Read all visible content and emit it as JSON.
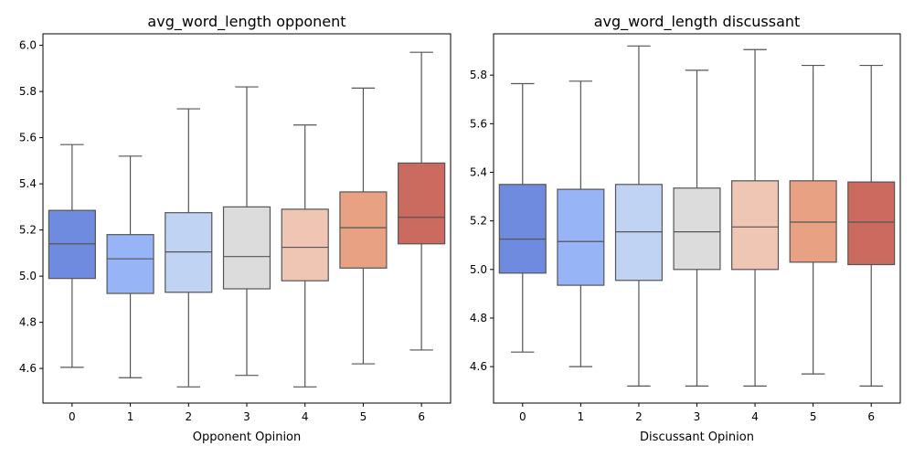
{
  "chart_data": [
    {
      "type": "box",
      "title": "avg_word_length opponent",
      "xlabel": "Opponent Opinion",
      "ylabel": "",
      "categories": [
        "0",
        "1",
        "2",
        "3",
        "4",
        "5",
        "6"
      ],
      "ylim": [
        4.45,
        6.05
      ],
      "yticks": [
        "4.6",
        "4.8",
        "5.0",
        "5.2",
        "5.4",
        "5.6",
        "5.8",
        "6.0"
      ],
      "grid": false,
      "boxes": [
        {
          "min": 4.605,
          "q1": 4.99,
          "median": 5.14,
          "q3": 5.285,
          "max": 5.57
        },
        {
          "min": 4.56,
          "q1": 4.925,
          "median": 5.075,
          "q3": 5.18,
          "max": 5.52
        },
        {
          "min": 4.52,
          "q1": 4.93,
          "median": 5.105,
          "q3": 5.275,
          "max": 5.725
        },
        {
          "min": 4.57,
          "q1": 4.945,
          "median": 5.085,
          "q3": 5.3,
          "max": 5.82
        },
        {
          "min": 4.52,
          "q1": 4.98,
          "median": 5.125,
          "q3": 5.29,
          "max": 5.655
        },
        {
          "min": 4.62,
          "q1": 5.035,
          "median": 5.21,
          "q3": 5.365,
          "max": 5.815
        },
        {
          "min": 4.68,
          "q1": 5.14,
          "median": 5.255,
          "q3": 5.49,
          "max": 5.97
        }
      ],
      "colors": [
        "#6f8be0",
        "#97b5f6",
        "#c1d3f3",
        "#dcdcdc",
        "#efc5b3",
        "#e9a184",
        "#cb6a5e"
      ]
    },
    {
      "type": "box",
      "title": "avg_word_length discussant",
      "xlabel": "Discussant Opinion",
      "ylabel": "",
      "categories": [
        "0",
        "1",
        "2",
        "3",
        "4",
        "5",
        "6"
      ],
      "ylim": [
        4.45,
        5.97
      ],
      "yticks": [
        "4.6",
        "4.8",
        "5.0",
        "5.2",
        "5.4",
        "5.6",
        "5.8"
      ],
      "grid": false,
      "boxes": [
        {
          "min": 4.66,
          "q1": 4.985,
          "median": 5.125,
          "q3": 5.35,
          "max": 5.765
        },
        {
          "min": 4.6,
          "q1": 4.935,
          "median": 5.115,
          "q3": 5.33,
          "max": 5.775
        },
        {
          "min": 4.52,
          "q1": 4.955,
          "median": 5.155,
          "q3": 5.35,
          "max": 5.92
        },
        {
          "min": 4.52,
          "q1": 5.0,
          "median": 5.155,
          "q3": 5.335,
          "max": 5.82
        },
        {
          "min": 4.52,
          "q1": 5.0,
          "median": 5.175,
          "q3": 5.365,
          "max": 5.905
        },
        {
          "min": 4.57,
          "q1": 5.03,
          "median": 5.195,
          "q3": 5.365,
          "max": 5.84
        },
        {
          "min": 4.52,
          "q1": 5.02,
          "median": 5.195,
          "q3": 5.36,
          "max": 5.84
        }
      ],
      "colors": [
        "#6f8be0",
        "#97b5f6",
        "#c1d3f3",
        "#dcdcdc",
        "#efc5b3",
        "#e9a184",
        "#cb6a5e"
      ]
    }
  ]
}
